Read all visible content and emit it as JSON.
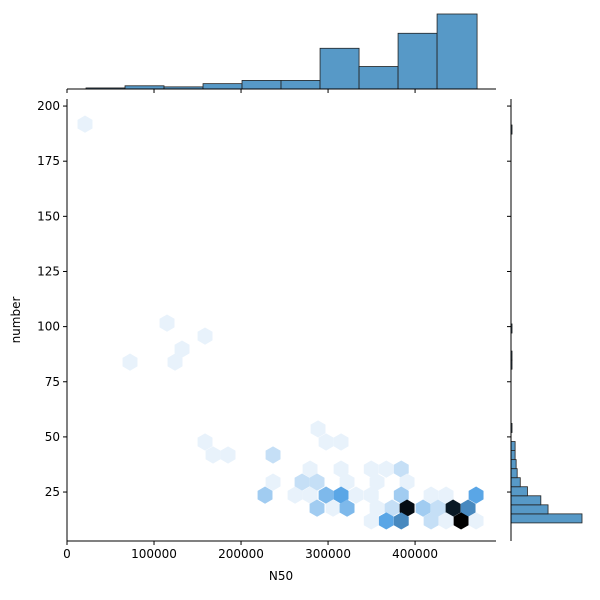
{
  "chart_data": {
    "type": "hexbin",
    "xlabel": "N50",
    "ylabel": "number",
    "xlim": [
      0,
      493000
    ],
    "ylim": [
      2.8,
      203.2
    ],
    "xticks": [
      0,
      100000,
      200000,
      300000,
      400000
    ],
    "yticks": [
      25,
      50,
      75,
      100,
      125,
      150,
      175,
      200
    ],
    "colormap": [
      "#e8f2fb",
      "#5aa6e6",
      "#12314a",
      "#000000"
    ],
    "hexbins": {
      "x": [
        20690,
        114943,
        132184,
        158621,
        72414,
        124138,
        158621,
        167816,
        185057,
        236782,
        288506,
        297701,
        314943,
        279310,
        314943,
        349655,
        366897,
        384138,
        270115,
        287356,
        321839,
        356322,
        390805,
        236782,
        227586,
        262069,
        279310,
        297701,
        314943,
        332184,
        349655,
        384138,
        418391,
        435632,
        470115,
        287356,
        305747,
        321839,
        356322,
        373563,
        390805,
        409195,
        426437,
        443678,
        460920,
        366897,
        384138,
        418391,
        435632,
        452874,
        470115,
        349655
      ],
      "y": [
        191.8,
        101.6,
        89.8,
        95.7,
        83.9,
        83.9,
        47.7,
        41.8,
        41.8,
        41.8,
        53.6,
        47.7,
        47.7,
        35.4,
        35.4,
        35.4,
        35.4,
        35.4,
        29.5,
        29.5,
        29.5,
        29.5,
        29.5,
        29.5,
        23.6,
        23.6,
        23.6,
        23.6,
        23.6,
        23.6,
        23.6,
        23.6,
        23.6,
        23.6,
        23.6,
        17.7,
        17.7,
        17.7,
        17.7,
        17.7,
        17.7,
        17.7,
        17.7,
        17.7,
        17.7,
        11.9,
        11.9,
        11.9,
        11.9,
        11.9,
        11.9,
        11.9
      ],
      "counts": [
        1,
        1,
        1,
        1,
        1,
        1,
        1,
        1,
        1,
        2,
        1,
        1,
        1,
        1,
        1,
        1,
        1,
        2,
        2,
        2,
        1,
        1,
        1,
        1,
        3,
        1,
        1,
        4,
        5,
        1,
        1,
        3,
        1,
        1,
        5,
        3,
        1,
        4,
        1,
        2,
        12,
        3,
        2,
        11,
        6,
        5,
        6,
        2,
        1,
        13,
        1,
        1
      ]
    },
    "x_histogram": {
      "color": "#5799c7",
      "bins": [
        21839,
        66667,
        111494,
        156322,
        201149,
        245977,
        290805,
        335632,
        380460,
        425287,
        471264
      ],
      "counts": [
        1,
        3,
        2,
        5,
        8,
        8,
        38,
        21,
        52,
        70
      ]
    },
    "y_histogram": {
      "color": "#5799c7",
      "bins": [
        11,
        15.1,
        19.2,
        23.3,
        27.4,
        31.5,
        35.6,
        39.7,
        43.8,
        47.9,
        52,
        56.1,
        60.2,
        64.3,
        68.4,
        72.5,
        76.6,
        80.7,
        84.8,
        88.9,
        93,
        97.1,
        101.2,
        105.3,
        109.4,
        113.5,
        117.6,
        121.7,
        125.8,
        129.9,
        134,
        138.1,
        142.2,
        146.3,
        150.4,
        154.5,
        158.6,
        162.7,
        166.8,
        170.9,
        175,
        179.1,
        183.2,
        187.3,
        191.4,
        195.5
      ],
      "counts": [
        69,
        36,
        29,
        16,
        9,
        6,
        5,
        4,
        4,
        0,
        1,
        0,
        0,
        0,
        0,
        0,
        0,
        1,
        1,
        0,
        0,
        1,
        0,
        0,
        0,
        0,
        0,
        0,
        0,
        0,
        0,
        0,
        0,
        0,
        0,
        0,
        0,
        0,
        0,
        0,
        0,
        0,
        0,
        1,
        0
      ]
    }
  }
}
